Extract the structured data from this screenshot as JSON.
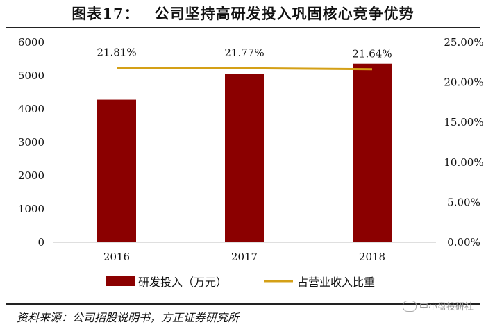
{
  "title": {
    "figure_no": "图表17：",
    "text": "公司坚持高研发投入巩固核心竞争优势"
  },
  "source": "资料来源：公司招股说明书，方正证券研究所",
  "watermark": "中小盘投研社",
  "colors": {
    "bar": "#8B0000",
    "line": "#D4A017",
    "text": "#111111"
  },
  "chart_data": {
    "type": "bar",
    "categories": [
      "2016",
      "2017",
      "2018"
    ],
    "series": [
      {
        "name": "研发投入（万元）",
        "type": "bar",
        "axis": "left",
        "values": [
          4280,
          5060,
          5360
        ]
      },
      {
        "name": "占营业收入比重",
        "type": "line",
        "axis": "right",
        "values": [
          21.81,
          21.77,
          21.64
        ],
        "labels": [
          "21.81%",
          "21.77%",
          "21.64%"
        ]
      }
    ],
    "y_left": {
      "min": 0,
      "max": 6000,
      "ticks": [
        0,
        1000,
        2000,
        3000,
        4000,
        5000,
        6000
      ]
    },
    "y_right": {
      "min": 0,
      "max": 25,
      "ticks": [
        "0.00%",
        "5.00%",
        "10.00%",
        "15.00%",
        "20.00%",
        "25.00%"
      ]
    },
    "grid": false,
    "legend": "bottom"
  }
}
